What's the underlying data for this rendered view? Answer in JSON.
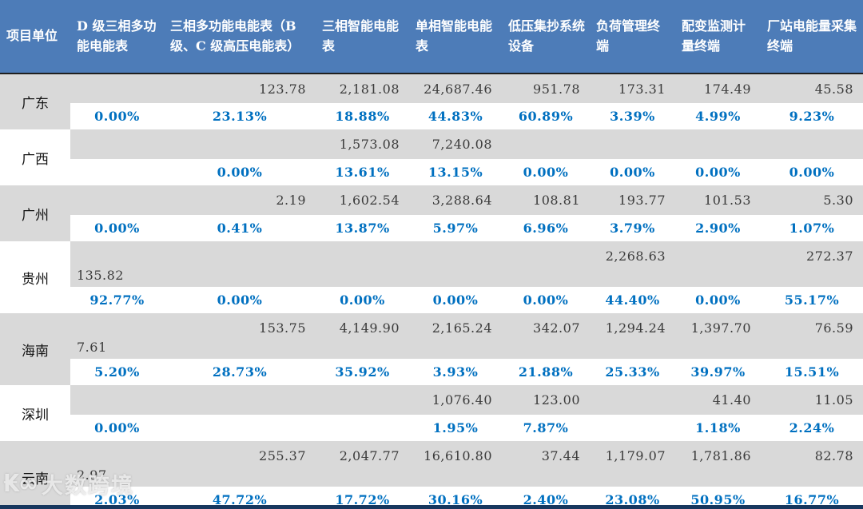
{
  "chart_data": {
    "type": "table",
    "columns": [
      "项目单位",
      "D 级三相多功能电能表",
      "三相多功能电能表（B 级、C 级高压电能表）",
      "三相智能电能表",
      "单相智能电能表",
      "低压集抄系统设备",
      "负荷管理终端",
      "配变监测计量终端",
      "厂站电能量采集终端"
    ],
    "rows": [
      {
        "unit": "广东",
        "shaded": true,
        "tall": false,
        "values": [
          "",
          "123.78",
          "2,181.08",
          "24,687.46",
          "951.78",
          "173.31",
          "174.49",
          "45.58"
        ],
        "percents": [
          "0.00%",
          "23.13%",
          "18.88%",
          "44.83%",
          "60.89%",
          "3.39%",
          "4.99%",
          "9.23%"
        ]
      },
      {
        "unit": "广西",
        "shaded": false,
        "tall": false,
        "values": [
          "",
          "",
          "1,573.08",
          "7,240.08",
          "",
          "",
          "",
          ""
        ],
        "percents": [
          "",
          "0.00%",
          "13.61%",
          "13.15%",
          "0.00%",
          "0.00%",
          "0.00%",
          "0.00%"
        ]
      },
      {
        "unit": "广州",
        "shaded": true,
        "tall": false,
        "values": [
          "",
          "2.19",
          "1,602.54",
          "3,288.64",
          "108.81",
          "193.77",
          "101.53",
          "5.30"
        ],
        "percents": [
          "0.00%",
          "0.41%",
          "13.87%",
          "5.97%",
          "6.96%",
          "3.79%",
          "2.90%",
          "1.07%"
        ]
      },
      {
        "unit": "贵州",
        "shaded": false,
        "tall": true,
        "values": [
          "135.82",
          "",
          "",
          "",
          "",
          "2,268.63",
          "",
          "272.37"
        ],
        "percents": [
          "92.77%",
          "0.00%",
          "0.00%",
          "0.00%",
          "0.00%",
          "44.40%",
          "0.00%",
          "55.17%"
        ]
      },
      {
        "unit": "海南",
        "shaded": true,
        "tall": true,
        "values": [
          "7.61",
          "153.75",
          "4,149.90",
          "2,165.24",
          "342.07",
          "1,294.24",
          "1,397.70",
          "76.59"
        ],
        "percents": [
          "5.20%",
          "28.73%",
          "35.92%",
          "3.93%",
          "21.88%",
          "25.33%",
          "39.97%",
          "15.51%"
        ]
      },
      {
        "unit": "深圳",
        "shaded": false,
        "tall": false,
        "values": [
          "",
          "",
          "",
          "1,076.40",
          "123.00",
          "",
          "41.40",
          "11.05"
        ],
        "percents": [
          "0.00%",
          "",
          "",
          "1.95%",
          "7.87%",
          "",
          "1.18%",
          "2.24%"
        ]
      },
      {
        "unit": "云南",
        "shaded": true,
        "tall": true,
        "values": [
          "2.97",
          "255.37",
          "2,047.77",
          "16,610.80",
          "37.44",
          "1,179.07",
          "1,781.86",
          "82.78"
        ],
        "percents": [
          "2.03%",
          "47.72%",
          "17.72%",
          "30.16%",
          "2.40%",
          "23.08%",
          "50.95%",
          "16.77%"
        ]
      }
    ]
  },
  "watermark": {
    "logo": "₭∞",
    "text": "大数跨境"
  },
  "colors": {
    "header_bg": "#4d7cb8",
    "header_text": "#ffffff",
    "band_gray": "#d9d9d9",
    "percent_blue": "#0070c0",
    "value_text": "#3b3b3b",
    "bottom_bar": "#17375e"
  }
}
